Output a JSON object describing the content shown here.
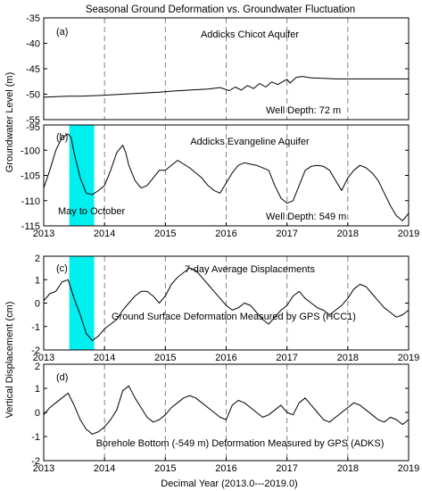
{
  "figure_title": "Seasonal Ground Deformation vs. Groundwater Fluctuation",
  "ylabel_groundwater": "Groundwater Level (m)",
  "ylabel_displacement": "Vertical Displacement (cm)",
  "xlabel": "Decimal Year (2013.0---2019.0)",
  "chart_data": [
    {
      "type": "line",
      "panel": "(a)",
      "title": "Addicks Chicot Aquifer",
      "annotation": "Well Depth: 72 m",
      "xlim": [
        2013,
        2019
      ],
      "ylim": [
        -55,
        -35
      ],
      "yticks": [
        -55,
        -50,
        -45,
        -40,
        -35
      ],
      "xticks": [],
      "dashed_years": [
        2013,
        2014,
        2015,
        2016,
        2017,
        2018
      ],
      "x": [
        2013.0,
        2013.2,
        2013.4,
        2013.6,
        2013.8,
        2014.0,
        2014.3,
        2014.6,
        2014.9,
        2015.1,
        2015.4,
        2015.7,
        2015.9,
        2016.05,
        2016.15,
        2016.25,
        2016.35,
        2016.45,
        2016.55,
        2016.65,
        2016.75,
        2016.85,
        2016.95,
        2017.0,
        2017.05,
        2017.15,
        2017.25,
        2017.4,
        2017.6,
        2017.8,
        2018.0,
        2018.3,
        2018.6,
        2019.0
      ],
      "y": [
        -50.6,
        -50.5,
        -50.4,
        -50.4,
        -50.3,
        -50.2,
        -50.0,
        -49.8,
        -49.6,
        -49.4,
        -49.2,
        -49.0,
        -48.7,
        -49.3,
        -48.6,
        -49.2,
        -48.3,
        -48.9,
        -47.9,
        -48.6,
        -47.6,
        -48.1,
        -47.4,
        -47.1,
        -47.8,
        -46.7,
        -46.5,
        -46.8,
        -46.9,
        -47.0,
        -47.0,
        -47.0,
        -47.0,
        -47.0
      ]
    },
    {
      "type": "line",
      "panel": "(b)",
      "title": "Addicks Evangeline Aquifer",
      "annotation": "Well Depth: 549 m",
      "highlight_label": "May to October",
      "highlight_range": [
        2013.42,
        2013.83
      ],
      "xlim": [
        2013,
        2019
      ],
      "ylim": [
        -115,
        -95
      ],
      "yticks": [
        -115,
        -110,
        -105,
        -100,
        -95
      ],
      "xticks": [
        2013,
        2014,
        2015,
        2016,
        2017,
        2018,
        2019
      ],
      "dashed_years": [
        2013,
        2014,
        2015,
        2016,
        2017,
        2018
      ],
      "x": [
        2013.0,
        2013.1,
        2013.2,
        2013.3,
        2013.4,
        2013.45,
        2013.5,
        2013.6,
        2013.7,
        2013.8,
        2013.9,
        2014.0,
        2014.1,
        2014.2,
        2014.3,
        2014.35,
        2014.4,
        2014.5,
        2014.6,
        2014.7,
        2014.8,
        2014.9,
        2015.0,
        2015.1,
        2015.2,
        2015.4,
        2015.6,
        2015.7,
        2015.8,
        2015.9,
        2016.0,
        2016.1,
        2016.2,
        2016.3,
        2016.5,
        2016.7,
        2016.8,
        2016.9,
        2017.0,
        2017.1,
        2017.2,
        2017.3,
        2017.4,
        2017.5,
        2017.6,
        2017.7,
        2017.8,
        2017.9,
        2018.0,
        2018.1,
        2018.2,
        2018.3,
        2018.4,
        2018.5,
        2018.6,
        2018.7,
        2018.8,
        2018.9,
        2019.0
      ],
      "y": [
        -107.5,
        -104.0,
        -100.0,
        -97.5,
        -96.8,
        -97.5,
        -100.5,
        -105.5,
        -108.5,
        -108.8,
        -108.0,
        -107.0,
        -104.0,
        -100.5,
        -99.0,
        -100.5,
        -103.0,
        -106.0,
        -107.5,
        -107.0,
        -105.5,
        -104.0,
        -104.0,
        -103.0,
        -102.0,
        -103.5,
        -105.5,
        -107.0,
        -108.0,
        -108.5,
        -106.5,
        -104.5,
        -103.0,
        -102.5,
        -103.0,
        -104.0,
        -107.0,
        -109.5,
        -110.5,
        -110.0,
        -107.0,
        -104.0,
        -103.2,
        -103.0,
        -103.2,
        -104.0,
        -106.0,
        -108.0,
        -105.5,
        -104.0,
        -103.0,
        -103.5,
        -104.5,
        -106.0,
        -108.5,
        -111.0,
        -113.0,
        -114.0,
        -112.5
      ]
    },
    {
      "type": "line",
      "panel": "(c)",
      "title": "7-day Average Displacements",
      "annotation": "Ground Surface Deformation Measured by GPS (HCC1)",
      "highlight_range": [
        2013.42,
        2013.83
      ],
      "xlim": [
        2013,
        2019
      ],
      "ylim": [
        -2,
        2
      ],
      "yticks": [
        -2,
        -1,
        0,
        1,
        2
      ],
      "xticks": [
        2013,
        2014,
        2015,
        2016,
        2017,
        2018,
        2019
      ],
      "dashed_years": [
        2013,
        2014,
        2015,
        2016,
        2017,
        2018
      ],
      "x": [
        2013.0,
        2013.1,
        2013.2,
        2013.3,
        2013.4,
        2013.5,
        2013.6,
        2013.7,
        2013.8,
        2013.9,
        2014.0,
        2014.1,
        2014.2,
        2014.3,
        2014.4,
        2014.5,
        2014.6,
        2014.7,
        2014.8,
        2014.9,
        2015.0,
        2015.1,
        2015.2,
        2015.3,
        2015.4,
        2015.5,
        2015.6,
        2015.7,
        2015.8,
        2015.9,
        2016.0,
        2016.1,
        2016.2,
        2016.3,
        2016.4,
        2016.5,
        2016.6,
        2016.7,
        2016.8,
        2016.9,
        2017.0,
        2017.1,
        2017.2,
        2017.3,
        2017.4,
        2017.5,
        2017.6,
        2017.7,
        2017.8,
        2017.9,
        2018.0,
        2018.1,
        2018.2,
        2018.3,
        2018.4,
        2018.5,
        2018.6,
        2018.7,
        2018.8,
        2018.9,
        2019.0
      ],
      "y": [
        0.1,
        0.4,
        0.5,
        0.9,
        1.0,
        0.2,
        -0.5,
        -1.3,
        -1.6,
        -1.4,
        -1.1,
        -0.9,
        -0.7,
        -0.3,
        0.0,
        0.3,
        0.5,
        0.5,
        0.3,
        0.0,
        0.3,
        0.8,
        1.1,
        1.3,
        1.5,
        1.4,
        1.1,
        0.8,
        0.5,
        0.2,
        -0.1,
        -0.3,
        -0.2,
        0.0,
        -0.1,
        -0.4,
        -0.7,
        -0.9,
        -0.6,
        -0.3,
        -0.1,
        0.3,
        0.5,
        0.2,
        0.0,
        -0.2,
        -0.3,
        -0.5,
        -0.3,
        -0.1,
        0.2,
        0.6,
        0.8,
        0.7,
        0.4,
        0.1,
        -0.2,
        -0.4,
        -0.6,
        -0.5,
        -0.3
      ]
    },
    {
      "type": "line",
      "panel": "(d)",
      "annotation": "Borehole Bottom (-549 m) Deformation Measured by GPS (ADKS)",
      "xlim": [
        2013,
        2019
      ],
      "ylim": [
        -2,
        2
      ],
      "yticks": [
        -2,
        -1,
        0,
        1,
        2
      ],
      "xticks": [
        2013,
        2014,
        2015,
        2016,
        2017,
        2018,
        2019
      ],
      "dashed_years": [
        2013,
        2014,
        2015,
        2016,
        2017,
        2018
      ],
      "x": [
        2013.0,
        2013.1,
        2013.2,
        2013.3,
        2013.4,
        2013.5,
        2013.6,
        2013.7,
        2013.8,
        2013.9,
        2014.0,
        2014.1,
        2014.2,
        2014.3,
        2014.4,
        2014.5,
        2014.6,
        2014.7,
        2014.8,
        2014.9,
        2015.0,
        2015.1,
        2015.2,
        2015.3,
        2015.4,
        2015.5,
        2015.6,
        2015.7,
        2015.8,
        2015.9,
        2016.0,
        2016.1,
        2016.2,
        2016.3,
        2016.4,
        2016.5,
        2016.6,
        2016.7,
        2016.8,
        2016.9,
        2017.0,
        2017.1,
        2017.2,
        2017.3,
        2017.4,
        2017.5,
        2017.6,
        2017.7,
        2017.8,
        2017.9,
        2018.0,
        2018.1,
        2018.2,
        2018.3,
        2018.4,
        2018.5,
        2018.6,
        2018.7,
        2018.8,
        2018.9,
        2019.0
      ],
      "y": [
        -0.1,
        0.2,
        0.4,
        0.6,
        0.8,
        0.3,
        -0.3,
        -0.7,
        -0.9,
        -0.8,
        -0.6,
        -0.3,
        0.1,
        0.9,
        1.1,
        0.6,
        0.2,
        -0.2,
        -0.4,
        -0.3,
        -0.1,
        0.2,
        0.4,
        0.6,
        0.7,
        0.6,
        0.4,
        0.2,
        0.0,
        -0.2,
        -0.3,
        0.3,
        0.5,
        0.4,
        0.2,
        0.0,
        -0.2,
        -0.1,
        0.1,
        0.3,
        0.0,
        -0.1,
        0.4,
        0.6,
        0.3,
        0.0,
        -0.3,
        -0.4,
        -0.2,
        0.0,
        0.2,
        0.4,
        0.3,
        0.1,
        -0.1,
        -0.3,
        -0.4,
        -0.2,
        -0.3,
        -0.5,
        -0.3
      ]
    }
  ]
}
